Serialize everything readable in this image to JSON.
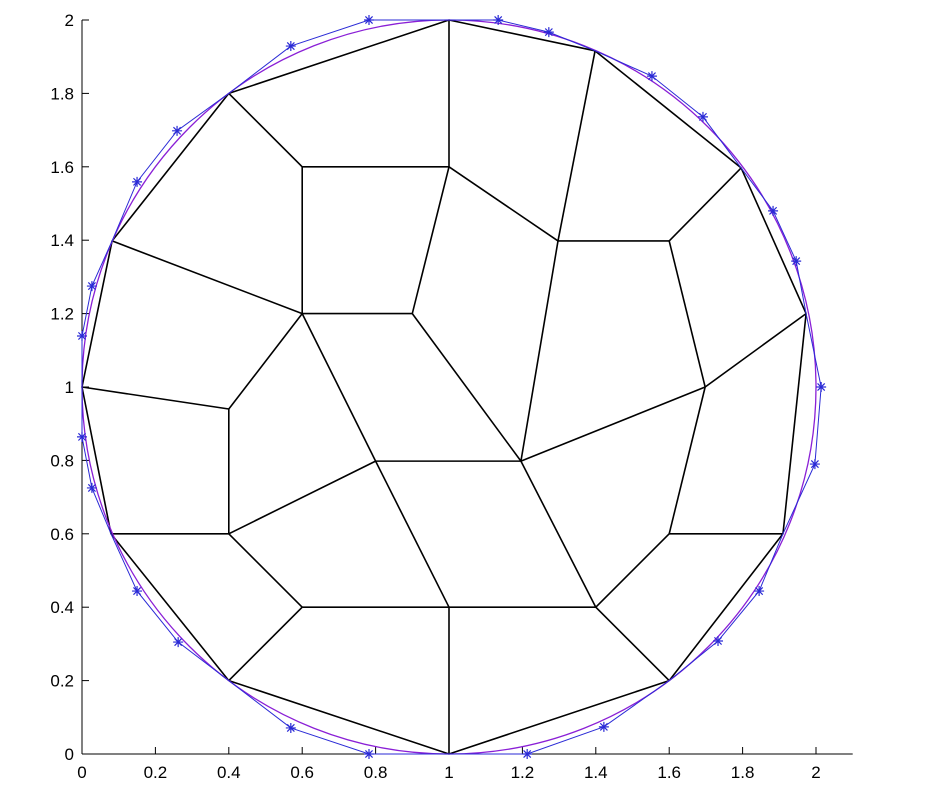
{
  "chart_data": {
    "type": "mesh",
    "xlim": [
      0,
      2.1
    ],
    "ylim": [
      0,
      2
    ],
    "xticks": [
      0,
      0.2,
      0.4,
      0.6,
      0.8,
      1,
      1.2,
      1.4,
      1.6,
      1.8,
      2
    ],
    "yticks": [
      0,
      0.2,
      0.4,
      0.6,
      0.8,
      1,
      1.2,
      1.4,
      1.6,
      1.8,
      2
    ],
    "mesh_color": "#000000",
    "segments": [
      {
        "x": [
          1,
          1.6
        ],
        "y": [
          0,
          0.2
        ]
      },
      {
        "x": [
          1.6,
          1.91
        ],
        "y": [
          0.2,
          0.6
        ]
      },
      {
        "x": [
          1.91,
          1.973
        ],
        "y": [
          0.6,
          1.2
        ]
      },
      {
        "x": [
          1.973,
          1.796
        ],
        "y": [
          1.2,
          1.597
        ]
      },
      {
        "x": [
          1.796,
          1.398
        ],
        "y": [
          1.597,
          1.916
        ]
      },
      {
        "x": [
          1.398,
          1
        ],
        "y": [
          1.916,
          2
        ]
      },
      {
        "x": [
          1,
          0.4
        ],
        "y": [
          2,
          1.8
        ]
      },
      {
        "x": [
          0.4,
          0.082
        ],
        "y": [
          1.8,
          1.398
        ]
      },
      {
        "x": [
          0.082,
          0
        ],
        "y": [
          1.398,
          1
        ]
      },
      {
        "x": [
          0,
          0.079
        ],
        "y": [
          1,
          0.6
        ]
      },
      {
        "x": [
          0.079,
          0.4
        ],
        "y": [
          0.6,
          0.2
        ]
      },
      {
        "x": [
          0.4,
          1
        ],
        "y": [
          0.2,
          0
        ]
      },
      {
        "x": [
          1,
          1
        ],
        "y": [
          0,
          0.4
        ]
      },
      {
        "x": [
          0.4,
          0.6
        ],
        "y": [
          0.2,
          0.4
        ]
      },
      {
        "x": [
          0.6,
          1
        ],
        "y": [
          0.4,
          0.4
        ]
      },
      {
        "x": [
          1,
          1.4
        ],
        "y": [
          0.4,
          0.4
        ]
      },
      {
        "x": [
          1.4,
          1.6
        ],
        "y": [
          0.4,
          0.2
        ]
      },
      {
        "x": [
          1.4,
          1.196
        ],
        "y": [
          0.4,
          0.798
        ]
      },
      {
        "x": [
          1,
          0.8
        ],
        "y": [
          0.4,
          0.798
        ]
      },
      {
        "x": [
          0.8,
          1.196
        ],
        "y": [
          0.798,
          0.798
        ]
      },
      {
        "x": [
          0.8,
          0.4
        ],
        "y": [
          0.798,
          0.6
        ]
      },
      {
        "x": [
          0.4,
          0.6
        ],
        "y": [
          0.6,
          0.4
        ]
      },
      {
        "x": [
          0.4,
          0.079
        ],
        "y": [
          0.6,
          0.6
        ]
      },
      {
        "x": [
          0.4,
          0.4
        ],
        "y": [
          0.6,
          0.94
        ]
      },
      {
        "x": [
          0.4,
          0
        ],
        "y": [
          0.94,
          1
        ]
      },
      {
        "x": [
          0.4,
          0.6
        ],
        "y": [
          0.94,
          1.2
        ]
      },
      {
        "x": [
          0.6,
          0.8
        ],
        "y": [
          1.2,
          0.798
        ]
      },
      {
        "x": [
          0.6,
          0.082
        ],
        "y": [
          1.2,
          1.398
        ]
      },
      {
        "x": [
          0.6,
          0.9
        ],
        "y": [
          1.2,
          1.2
        ]
      },
      {
        "x": [
          0.9,
          1.196
        ],
        "y": [
          1.2,
          0.798
        ]
      },
      {
        "x": [
          0.6,
          0.6
        ],
        "y": [
          1.2,
          1.6
        ]
      },
      {
        "x": [
          0.6,
          0.4
        ],
        "y": [
          1.6,
          1.8
        ]
      },
      {
        "x": [
          0.6,
          1
        ],
        "y": [
          1.6,
          1.6
        ]
      },
      {
        "x": [
          1,
          0.9
        ],
        "y": [
          1.6,
          1.2
        ]
      },
      {
        "x": [
          1,
          1
        ],
        "y": [
          1.6,
          2
        ]
      },
      {
        "x": [
          1,
          1.297
        ],
        "y": [
          1.6,
          1.398
        ]
      },
      {
        "x": [
          1.297,
          1.398
        ],
        "y": [
          1.398,
          1.916
        ]
      },
      {
        "x": [
          1.297,
          1.196
        ],
        "y": [
          1.398,
          0.798
        ]
      },
      {
        "x": [
          1.297,
          1.6
        ],
        "y": [
          1.398,
          1.398
        ]
      },
      {
        "x": [
          1.6,
          1.796
        ],
        "y": [
          1.398,
          1.597
        ]
      },
      {
        "x": [
          1.6,
          1.698
        ],
        "y": [
          1.398,
          1
        ]
      },
      {
        "x": [
          1.698,
          1.196
        ],
        "y": [
          1,
          0.798
        ]
      },
      {
        "x": [
          1.698,
          1.973
        ],
        "y": [
          1,
          1.2
        ]
      },
      {
        "x": [
          1.698,
          1.6
        ],
        "y": [
          1,
          0.6
        ]
      },
      {
        "x": [
          1.6,
          1.91
        ],
        "y": [
          0.6,
          0.6
        ]
      },
      {
        "x": [
          1.6,
          1.4
        ],
        "y": [
          0.6,
          0.4
        ]
      }
    ],
    "circle": {
      "cx": 1,
      "cy": 1,
      "r": 1,
      "color": "#8a1fd6"
    },
    "control": {
      "color": "#2a2ad6",
      "x": [
        1,
        1.213,
        1.422,
        1.6,
        1.733,
        1.845,
        1.91,
        1.997,
        2.014,
        1.973,
        1.946,
        1.883,
        1.796,
        1.692,
        1.553,
        1.398,
        1.272,
        1.134,
        1,
        0.782,
        0.569,
        0.4,
        0.259,
        0.15,
        0.082,
        0.027,
        0,
        0,
        0,
        0.027,
        0.079,
        0.15,
        0.262,
        0.4,
        0.569,
        0.782,
        1
      ],
      "y": [
        0,
        0,
        0.074,
        0.2,
        0.308,
        0.444,
        0.6,
        0.79,
        1,
        1.2,
        1.343,
        1.48,
        1.597,
        1.736,
        1.847,
        1.916,
        1.967,
        2,
        2,
        2,
        1.929,
        1.8,
        1.698,
        1.559,
        1.398,
        1.275,
        1.139,
        1,
        0.864,
        0.725,
        0.6,
        0.444,
        0.305,
        0.2,
        0.071,
        0,
        0
      ]
    },
    "stars": {
      "color": "#2a2ad6",
      "x": [
        1.213,
        1.422,
        1.733,
        1.845,
        1.997,
        2.014,
        1.946,
        1.883,
        1.692,
        1.553,
        1.272,
        1.134,
        0.782,
        0.569,
        0.259,
        0.15,
        0.027,
        0,
        0,
        0.027,
        0.15,
        0.262,
        0.569,
        0.782
      ],
      "y": [
        0,
        0.074,
        0.308,
        0.444,
        0.79,
        1,
        1.343,
        1.48,
        1.736,
        1.847,
        1.967,
        2,
        2,
        1.929,
        1.698,
        1.559,
        1.275,
        1.139,
        0.864,
        0.725,
        0.444,
        0.305,
        0.071,
        0
      ]
    }
  }
}
